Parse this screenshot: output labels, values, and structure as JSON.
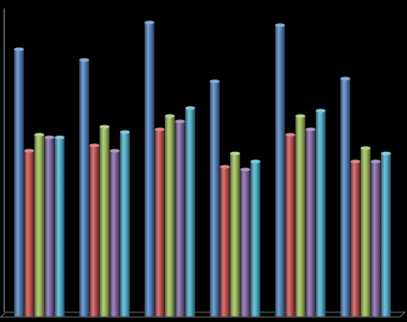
{
  "chart_data": {
    "type": "bar",
    "categories": [
      "",
      "",
      "",
      "",
      "",
      ""
    ],
    "series": [
      {
        "color": "#4f81bd",
        "values": [
          100,
          96,
          110,
          88,
          109,
          89
        ]
      },
      {
        "color": "#c0504d",
        "values": [
          62,
          64,
          70,
          56,
          68,
          58
        ]
      },
      {
        "color": "#9bbb59",
        "values": [
          68,
          71,
          75,
          61,
          75,
          63
        ]
      },
      {
        "color": "#8064a2",
        "values": [
          67,
          62,
          73,
          55,
          70,
          58
        ]
      },
      {
        "color": "#4bacc6",
        "values": [
          67,
          69,
          78,
          58,
          77,
          61
        ]
      }
    ],
    "ylim": [
      0,
      110
    ],
    "grid": false,
    "legend": "none",
    "style": "3d-cylinder"
  }
}
